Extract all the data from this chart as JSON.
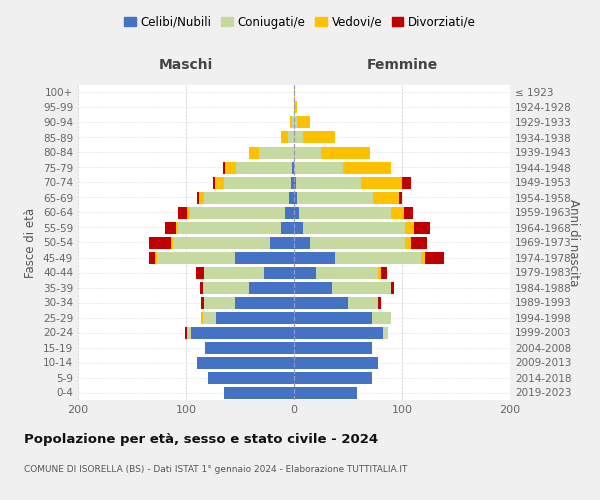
{
  "age_groups": [
    "0-4",
    "5-9",
    "10-14",
    "15-19",
    "20-24",
    "25-29",
    "30-34",
    "35-39",
    "40-44",
    "45-49",
    "50-54",
    "55-59",
    "60-64",
    "65-69",
    "70-74",
    "75-79",
    "80-84",
    "85-89",
    "90-94",
    "95-99",
    "100+"
  ],
  "birth_years": [
    "2019-2023",
    "2014-2018",
    "2009-2013",
    "2004-2008",
    "1999-2003",
    "1994-1998",
    "1989-1993",
    "1984-1988",
    "1979-1983",
    "1974-1978",
    "1969-1973",
    "1964-1968",
    "1959-1963",
    "1954-1958",
    "1949-1953",
    "1944-1948",
    "1939-1943",
    "1934-1938",
    "1929-1933",
    "1924-1928",
    "≤ 1923"
  ],
  "males": {
    "celibi": [
      65,
      80,
      90,
      82,
      95,
      72,
      55,
      42,
      28,
      55,
      22,
      12,
      8,
      5,
      3,
      2,
      0,
      0,
      0,
      0,
      0
    ],
    "coniugati": [
      0,
      0,
      0,
      0,
      4,
      12,
      28,
      42,
      55,
      72,
      90,
      95,
      88,
      78,
      62,
      52,
      32,
      6,
      2,
      0,
      0
    ],
    "vedovi": [
      0,
      0,
      0,
      0,
      0,
      2,
      0,
      0,
      0,
      2,
      2,
      2,
      3,
      5,
      8,
      10,
      10,
      6,
      2,
      0,
      0
    ],
    "divorziati": [
      0,
      0,
      0,
      0,
      2,
      0,
      3,
      3,
      8,
      5,
      20,
      10,
      8,
      2,
      2,
      2,
      0,
      0,
      0,
      0,
      0
    ]
  },
  "females": {
    "nubili": [
      58,
      72,
      78,
      72,
      82,
      72,
      50,
      35,
      20,
      38,
      15,
      8,
      5,
      3,
      2,
      0,
      0,
      0,
      0,
      0,
      0
    ],
    "coniugate": [
      0,
      0,
      0,
      0,
      5,
      18,
      28,
      55,
      58,
      80,
      88,
      95,
      85,
      70,
      60,
      45,
      25,
      8,
      3,
      0,
      0
    ],
    "vedove": [
      0,
      0,
      0,
      0,
      0,
      0,
      0,
      0,
      3,
      3,
      5,
      8,
      12,
      24,
      38,
      45,
      45,
      30,
      12,
      3,
      1
    ],
    "divorziate": [
      0,
      0,
      0,
      0,
      0,
      0,
      3,
      3,
      5,
      18,
      15,
      15,
      8,
      3,
      8,
      0,
      0,
      0,
      0,
      0,
      0
    ]
  },
  "colors": {
    "celibi": "#4472c4",
    "coniugati": "#c5d9a0",
    "vedovi": "#ffc000",
    "divorziati": "#c00000"
  },
  "legend_labels": [
    "Celibi/Nubili",
    "Coniugati/e",
    "Vedovi/e",
    "Divorziati/e"
  ],
  "title": "Popolazione per età, sesso e stato civile - 2024",
  "subtitle": "COMUNE DI ISORELLA (BS) - Dati ISTAT 1° gennaio 2024 - Elaborazione TUTTITALIA.IT",
  "xlabel_left": "Maschi",
  "xlabel_right": "Femmine",
  "ylabel_left": "Fasce di età",
  "ylabel_right": "Anni di nascita",
  "xlim": 200,
  "bg_color": "#f0f0f0",
  "plot_bg": "#ffffff"
}
